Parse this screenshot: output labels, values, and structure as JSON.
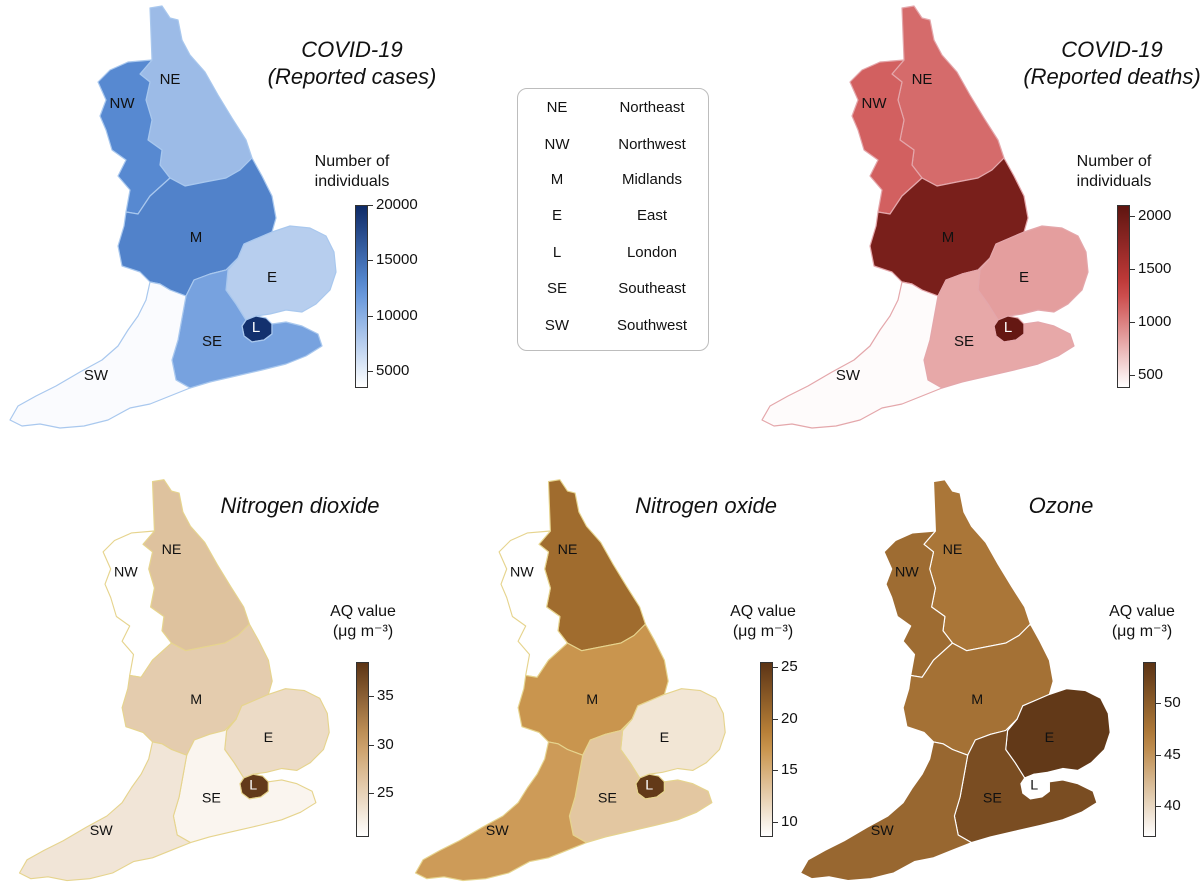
{
  "region_labels": [
    "NE",
    "NW",
    "M",
    "E",
    "L",
    "SE",
    "SW"
  ],
  "legend": [
    {
      "abbr": "NE",
      "name": "Northeast"
    },
    {
      "abbr": "NW",
      "name": "Northwest"
    },
    {
      "abbr": "M",
      "name": "Midlands"
    },
    {
      "abbr": "E",
      "name": "East"
    },
    {
      "abbr": "L",
      "name": "London"
    },
    {
      "abbr": "SE",
      "name": "Southeast"
    },
    {
      "abbr": "SW",
      "name": "Southwest"
    }
  ],
  "maps": [
    {
      "title_line1": "COVID-19",
      "title_line2": "(Reported cases)",
      "colorbar_title_line1": "Number of",
      "colorbar_title_line2": "individuals",
      "ticks": [
        "20000",
        "15000",
        "10000",
        "5000"
      ],
      "tick_values": [
        20000,
        15000,
        10000,
        5000
      ],
      "range": [
        3500,
        20000
      ],
      "colors": {
        "low": "#ffffff",
        "mid": "#5b8fd8",
        "high": "#0e2a66"
      },
      "outline": "#a9c8ee",
      "regions": {
        "NE": 9000,
        "NW": 13000,
        "M": 13500,
        "E": 7500,
        "L": 19500,
        "SE": 11000,
        "SW": 3800
      }
    },
    {
      "title_line1": "COVID-19",
      "title_line2": "(Reported deaths)",
      "colorbar_title_line1": "Number of",
      "colorbar_title_line2": "individuals",
      "ticks": [
        "2000",
        "1500",
        "1000",
        "500"
      ],
      "tick_values": [
        2000,
        1500,
        1000,
        500
      ],
      "range": [
        380,
        2100
      ],
      "colors": {
        "low": "#ffffff",
        "mid": "#c83c3c",
        "high": "#5e1510"
      },
      "outline": "#e4a7ab",
      "regions": {
        "NE": 1100,
        "NW": 1150,
        "M": 1900,
        "E": 850,
        "L": 2050,
        "SE": 800,
        "SW": 400
      }
    },
    {
      "title_line1": "Nitrogen dioxide",
      "title_line2": "",
      "colorbar_title_line1": "AQ value",
      "colorbar_title_line2": "(μg m⁻³)",
      "ticks": [
        "35",
        "30",
        "25"
      ],
      "tick_values": [
        35,
        30,
        25
      ],
      "range": [
        20.5,
        38.5
      ],
      "colors": {
        "low": "#ffffff",
        "mid": "#c99a5f",
        "high": "#5c3415"
      },
      "outline": "#e6d48e",
      "regions": {
        "NE": 26.5,
        "NW": 20.5,
        "M": 25.5,
        "E": 24.0,
        "L": 38.0,
        "SE": 21.5,
        "SW": 23.0
      }
    },
    {
      "title_line1": "Nitrogen oxide",
      "title_line2": "",
      "colorbar_title_line1": "AQ value",
      "colorbar_title_line2": "(μg m⁻³)",
      "ticks": [
        "25",
        "20",
        "15",
        "10"
      ],
      "tick_values": [
        25,
        20,
        15,
        10
      ],
      "range": [
        8.5,
        25.5
      ],
      "colors": {
        "low": "#ffffff",
        "mid": "#c48a3c",
        "high": "#5c3415"
      },
      "outline": "#e6d48e",
      "regions": {
        "NE": 20.5,
        "NW": 8.5,
        "M": 17.0,
        "E": 10.5,
        "L": 25.0,
        "SE": 13.0,
        "SW": 16.5
      }
    },
    {
      "title_line1": "Ozone",
      "title_line2": "",
      "colorbar_title_line1": "AQ value",
      "colorbar_title_line2": "(μg m⁻³)",
      "ticks": [
        "50",
        "45",
        "40"
      ],
      "tick_values": [
        50,
        45,
        40
      ],
      "range": [
        37,
        54
      ],
      "colors": {
        "low": "#ffffff",
        "mid": "#b8823e",
        "high": "#5c3415"
      },
      "outline": "#ffffff",
      "regions": {
        "NE": 47.5,
        "NW": 48.5,
        "M": 48.0,
        "E": 53.5,
        "L": 37.0,
        "SE": 51.5,
        "SW": 49.0
      }
    }
  ]
}
